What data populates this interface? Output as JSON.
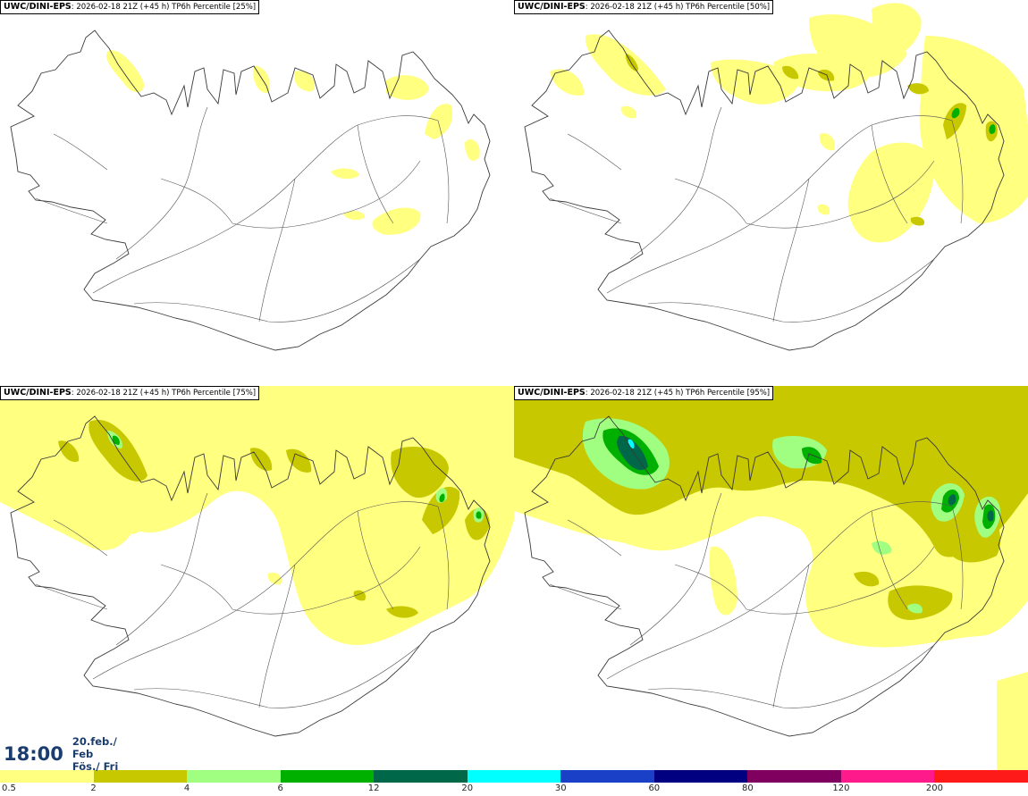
{
  "panels": [
    {
      "id": "p25",
      "title_model": "UWC/DINI-EPS",
      "title_rest": ": 2026-02-18 21Z (+45 h) TP6h Percentile [25%]"
    },
    {
      "id": "p50",
      "title_model": "UWC/DINI-EPS",
      "title_rest": ": 2026-02-18 21Z (+45 h) TP6h Percentile [50%]"
    },
    {
      "id": "p75",
      "title_model": "UWC/DINI-EPS",
      "title_rest": ": 2026-02-18 21Z (+45 h) TP6h Percentile [75%]"
    },
    {
      "id": "p95",
      "title_model": "UWC/DINI-EPS",
      "title_rest": ": 2026-02-18 21Z (+45 h) TP6h Percentile [95%]"
    }
  ],
  "valid_time": {
    "time": "18:00",
    "date_line1": "20.feb./ Feb",
    "date_line2": "Fös./ Fri"
  },
  "legend": {
    "labels": [
      "0.5",
      "2",
      "4",
      "6",
      "12",
      "20",
      "30",
      "60",
      "80",
      "120",
      "200"
    ],
    "colors": [
      "#ffff80",
      "#c8c800",
      "#a0ff80",
      "#00b000",
      "#006848",
      "#00ffff",
      "#1a40c8",
      "#000080",
      "#800060",
      "#ff1a8c",
      "#ff1a1a"
    ]
  },
  "colors": {
    "light_yellow": "#ffff80",
    "olive": "#c8c800",
    "light_green": "#a0ff80",
    "green": "#00b000",
    "dark_green": "#006848",
    "cyan": "#00ffff",
    "outline": "#3a3a3a"
  }
}
